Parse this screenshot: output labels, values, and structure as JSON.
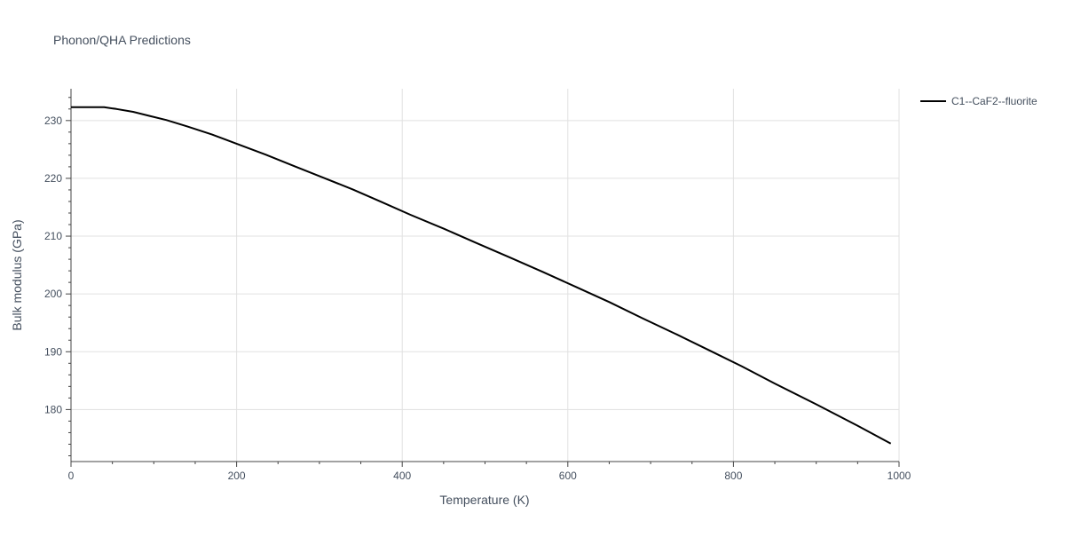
{
  "chart_data": {
    "type": "line",
    "title": "Phonon/QHA Predictions",
    "xlabel": "Temperature (K)",
    "ylabel": "Bulk modulus (GPa)",
    "xlim": [
      0,
      1000
    ],
    "ylim": [
      171,
      235.5
    ],
    "xticks": [
      0,
      200,
      400,
      600,
      800,
      1000
    ],
    "yticks": [
      180,
      190,
      200,
      210,
      220,
      230
    ],
    "grid": true,
    "legend_position": "top-right",
    "series": [
      {
        "name": "C1--CaF2--fluorite",
        "color": "#000000",
        "x": [
          0,
          20,
          40,
          55,
          75,
          95,
          115,
          140,
          170,
          200,
          235,
          270,
          305,
          340,
          375,
          410,
          450,
          490,
          530,
          570,
          610,
          650,
          690,
          730,
          770,
          810,
          850,
          900,
          950,
          990
        ],
        "y": [
          232.3,
          232.3,
          232.3,
          232.0,
          231.5,
          230.8,
          230.1,
          229.0,
          227.6,
          226.0,
          224.1,
          222.1,
          220.1,
          218.1,
          215.9,
          213.7,
          211.3,
          208.8,
          206.3,
          203.8,
          201.2,
          198.6,
          195.8,
          193.1,
          190.3,
          187.5,
          184.5,
          180.9,
          177.2,
          174.1
        ]
      }
    ]
  }
}
